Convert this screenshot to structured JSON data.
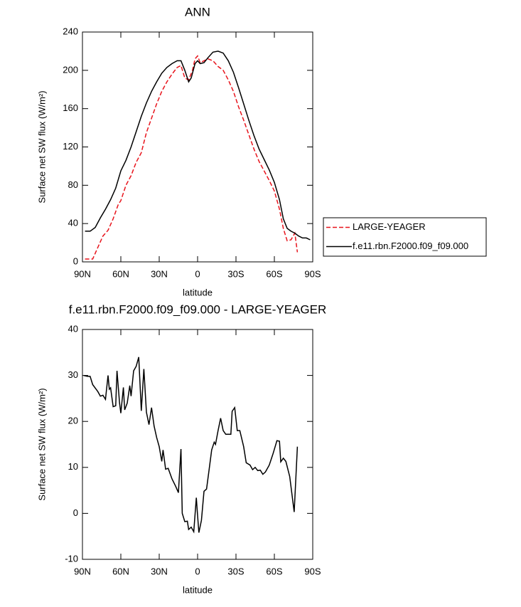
{
  "chart_data": [
    {
      "type": "line",
      "title": "ANN",
      "xlabel": "latitude",
      "ylabel": "Surface net SW flux (W/m²)",
      "xlim": [
        90,
        -90
      ],
      "xticks": [
        {
          "value": 90,
          "label": "90N"
        },
        {
          "value": 60,
          "label": "60N"
        },
        {
          "value": 30,
          "label": "30N"
        },
        0,
        {
          "value": -30,
          "label": "30S"
        },
        {
          "value": -60,
          "label": "60S"
        },
        {
          "value": -90,
          "label": "90S"
        }
      ],
      "ylim": [
        0,
        240
      ],
      "yticks": [
        0,
        40,
        80,
        120,
        160,
        200,
        240
      ],
      "legend": "right",
      "series": [
        {
          "name": "LARGE-YEAGER",
          "color": "#e8141c",
          "dash": true,
          "x": [
            88,
            82,
            78,
            74,
            70,
            66,
            62,
            60,
            56,
            52,
            48,
            44,
            40,
            36,
            32,
            28,
            24,
            20,
            16,
            13,
            10,
            7,
            4,
            2,
            0,
            -2,
            -5,
            -8,
            -12,
            -16,
            -20,
            -24,
            -28,
            -32,
            -36,
            -40,
            -44,
            -48,
            -52,
            -56,
            -60,
            -64,
            -67,
            -70,
            -73,
            -76,
            -78
          ],
          "values": [
            3,
            3,
            15,
            27,
            33,
            45,
            60,
            64,
            80,
            90,
            104,
            114,
            135,
            150,
            165,
            178,
            188,
            196,
            203,
            205,
            192,
            190,
            200,
            212,
            215,
            208,
            210,
            212,
            210,
            204,
            200,
            190,
            178,
            162,
            148,
            133,
            118,
            105,
            95,
            85,
            74,
            55,
            35,
            22,
            23,
            30,
            10
          ]
        },
        {
          "name": "f.e11.rbn.F2000.f09_f09.000",
          "color": "#000000",
          "dash": false,
          "x": [
            88,
            84,
            80,
            76,
            72,
            68,
            64,
            60,
            56,
            52,
            48,
            44,
            40,
            36,
            32,
            28,
            24,
            20,
            16,
            13,
            10,
            7,
            5,
            2,
            0,
            -2,
            -5,
            -8,
            -12,
            -16,
            -20,
            -24,
            -28,
            -32,
            -36,
            -40,
            -44,
            -48,
            -52,
            -56,
            -60,
            -64,
            -67,
            -70,
            -73,
            -76,
            -79,
            -82,
            -85,
            -88
          ],
          "values": [
            32,
            32,
            36,
            46,
            55,
            65,
            77,
            95,
            106,
            120,
            136,
            152,
            166,
            178,
            188,
            197,
            203,
            207,
            210,
            210,
            200,
            188,
            192,
            207,
            210,
            207,
            208,
            213,
            219,
            220,
            218,
            210,
            198,
            182,
            165,
            148,
            132,
            118,
            107,
            96,
            83,
            65,
            45,
            35,
            32,
            30,
            27,
            25,
            25,
            23
          ]
        }
      ]
    },
    {
      "type": "line",
      "title": "f.e11.rbn.F2000.f09_f09.000 - LARGE-YEAGER",
      "xlabel": "latitude",
      "ylabel": "Surface net SW flux (W/m²)",
      "xlim": [
        90,
        -90
      ],
      "xticks": [
        {
          "value": 90,
          "label": "90N"
        },
        {
          "value": 60,
          "label": "60N"
        },
        {
          "value": 30,
          "label": "30N"
        },
        0,
        {
          "value": -30,
          "label": "30S"
        },
        {
          "value": -60,
          "label": "60S"
        },
        {
          "value": -90,
          "label": "90S"
        }
      ],
      "ylim": [
        -10,
        40
      ],
      "yticks": [
        -10,
        0,
        10,
        20,
        30,
        40
      ],
      "color": "#000000",
      "x": [
        89,
        86,
        84,
        82,
        78,
        76,
        74,
        72,
        70,
        69,
        68,
        66,
        64,
        63,
        61,
        60,
        58,
        57,
        55,
        53,
        52,
        50,
        48,
        46,
        44,
        42,
        40,
        38,
        36,
        34,
        32,
        30,
        28,
        27,
        25,
        23,
        20,
        17,
        15,
        13,
        12,
        10,
        8,
        7,
        5,
        3,
        1,
        0,
        -1,
        -3,
        -5,
        -7,
        -9,
        -11,
        -13,
        -14,
        -16,
        -18,
        -20,
        -22,
        -26,
        -27,
        -29,
        -31,
        -33,
        -36,
        -38,
        -41,
        -43,
        -45,
        -47,
        -49,
        -51,
        -53,
        -56,
        -59,
        -62,
        -64,
        -65,
        -67,
        -69,
        -72,
        -75.5,
        -78
      ],
      "values": [
        30,
        29.8,
        29.8,
        28,
        26.5,
        25.5,
        25.7,
        24.8,
        30,
        27,
        27.3,
        23.2,
        23.4,
        31,
        24,
        21.8,
        27.4,
        22.5,
        24,
        27.8,
        25.5,
        31,
        32,
        34,
        22.3,
        31.4,
        22,
        19.3,
        23,
        19,
        16.5,
        14.5,
        11.3,
        13.8,
        9.6,
        9.8,
        7.5,
        5.8,
        4.5,
        14,
        0,
        -1.8,
        -1.7,
        -3.5,
        -3,
        -4,
        3.4,
        -0.5,
        -4.2,
        -1.5,
        4.8,
        5.3,
        9.5,
        13.8,
        15.5,
        15,
        18,
        20.7,
        18,
        17.2,
        17.2,
        22.2,
        23,
        18,
        18,
        14.5,
        11,
        10.5,
        9.5,
        10,
        9.3,
        9.4,
        8.5,
        9,
        10.5,
        13,
        15.8,
        15.7,
        11.2,
        12,
        11.3,
        8,
        0.3,
        14.5
      ]
    }
  ]
}
